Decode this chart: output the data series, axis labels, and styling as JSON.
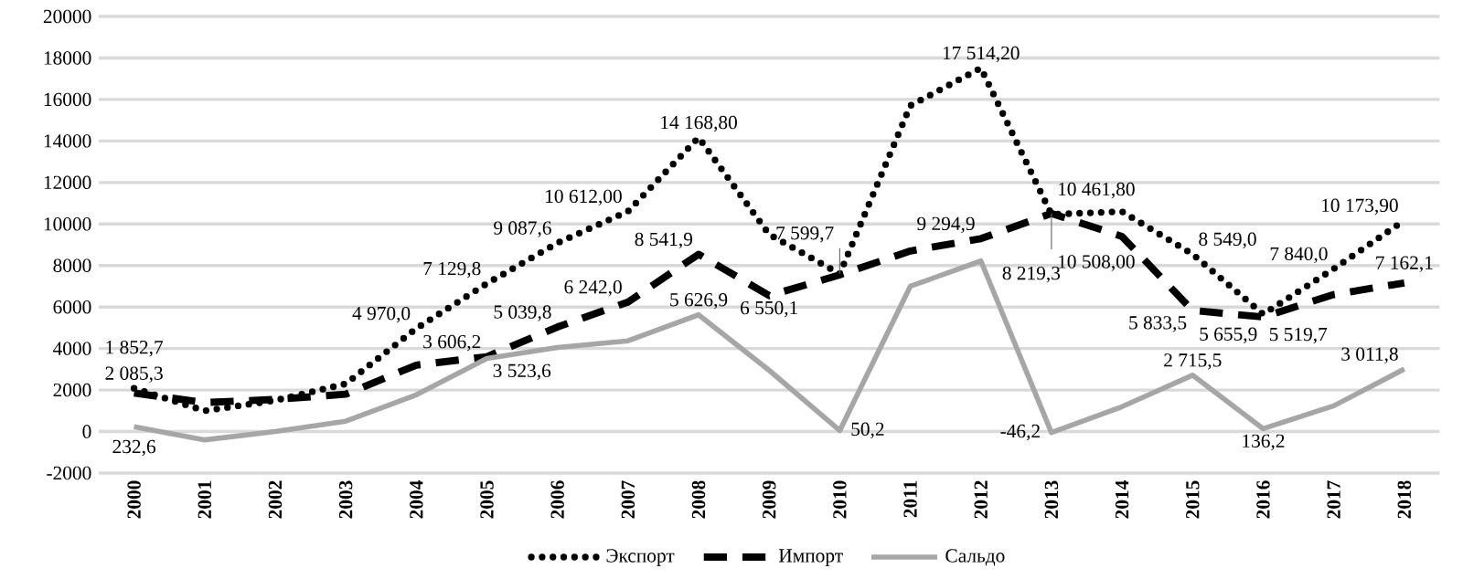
{
  "chart_data": {
    "type": "line",
    "categories": [
      "2000",
      "2001",
      "2002",
      "2003",
      "2004",
      "2005",
      "2006",
      "2007",
      "2008",
      "2009",
      "2010",
      "2011",
      "2012",
      "2013",
      "2014",
      "2015",
      "2016",
      "2017",
      "2018"
    ],
    "series": [
      {
        "name": "Экспорт",
        "color": "#000000",
        "line_style": "dotted",
        "values": [
          2085.3,
          1000,
          1500,
          2300,
          4970.0,
          7129.8,
          9087.6,
          10612.0,
          14168.8,
          9500,
          7599.7,
          15700,
          17514.2,
          10461.8,
          10600,
          8549.0,
          5655.9,
          7840.0,
          10173.9
        ],
        "value_labels": [
          "2 085,3",
          null,
          null,
          null,
          "4 970,0",
          "7 129,8",
          "9 087,6",
          "10 612,00",
          "14 168,80",
          null,
          "7 599,7",
          null,
          "17 514,20",
          "10 461,80",
          null,
          "8 549,0",
          "5 655,9",
          "7 840,0",
          "10 173,90"
        ]
      },
      {
        "name": "Импорт",
        "color": "#000000",
        "line_style": "dashed",
        "values": [
          1852.7,
          1400,
          1550,
          1800,
          3200,
          3606.2,
          5039.8,
          6242.0,
          8541.9,
          6550.1,
          7550,
          8700,
          9294.9,
          10508.0,
          9400,
          5833.5,
          5519.7,
          6600,
          7162.1
        ],
        "value_labels": [
          "1 852,7",
          null,
          null,
          null,
          null,
          "3 606,2",
          "5 039,8",
          "6 242,0",
          "8 541,9",
          "6 550,1",
          null,
          null,
          "9 294,9",
          "10 508,00",
          null,
          "5 833,5",
          "5 519,7",
          null,
          "7 162,1"
        ]
      },
      {
        "name": "Сальдо",
        "color": "#a6a6a6",
        "line_style": "solid",
        "values": [
          232.6,
          -400,
          0,
          500,
          1770,
          3523.6,
          4047.8,
          4370,
          5626.9,
          2950,
          50.2,
          7000,
          8219.3,
          -46.2,
          1200,
          2715.5,
          136.2,
          1240,
          3011.8
        ],
        "value_labels": [
          "232,6",
          null,
          null,
          null,
          null,
          "3 523,6",
          null,
          null,
          "5 626,9",
          null,
          "50,2",
          null,
          "8 219,3",
          "-46,2",
          null,
          "2 715,5",
          "136,2",
          null,
          "3 011,8"
        ]
      }
    ],
    "ylim": [
      -2000,
      20000
    ],
    "yticks": [
      -2000,
      0,
      2000,
      4000,
      6000,
      8000,
      10000,
      12000,
      14000,
      16000,
      18000,
      20000
    ],
    "grid": "y",
    "legend": "bottom",
    "marker": "none"
  }
}
